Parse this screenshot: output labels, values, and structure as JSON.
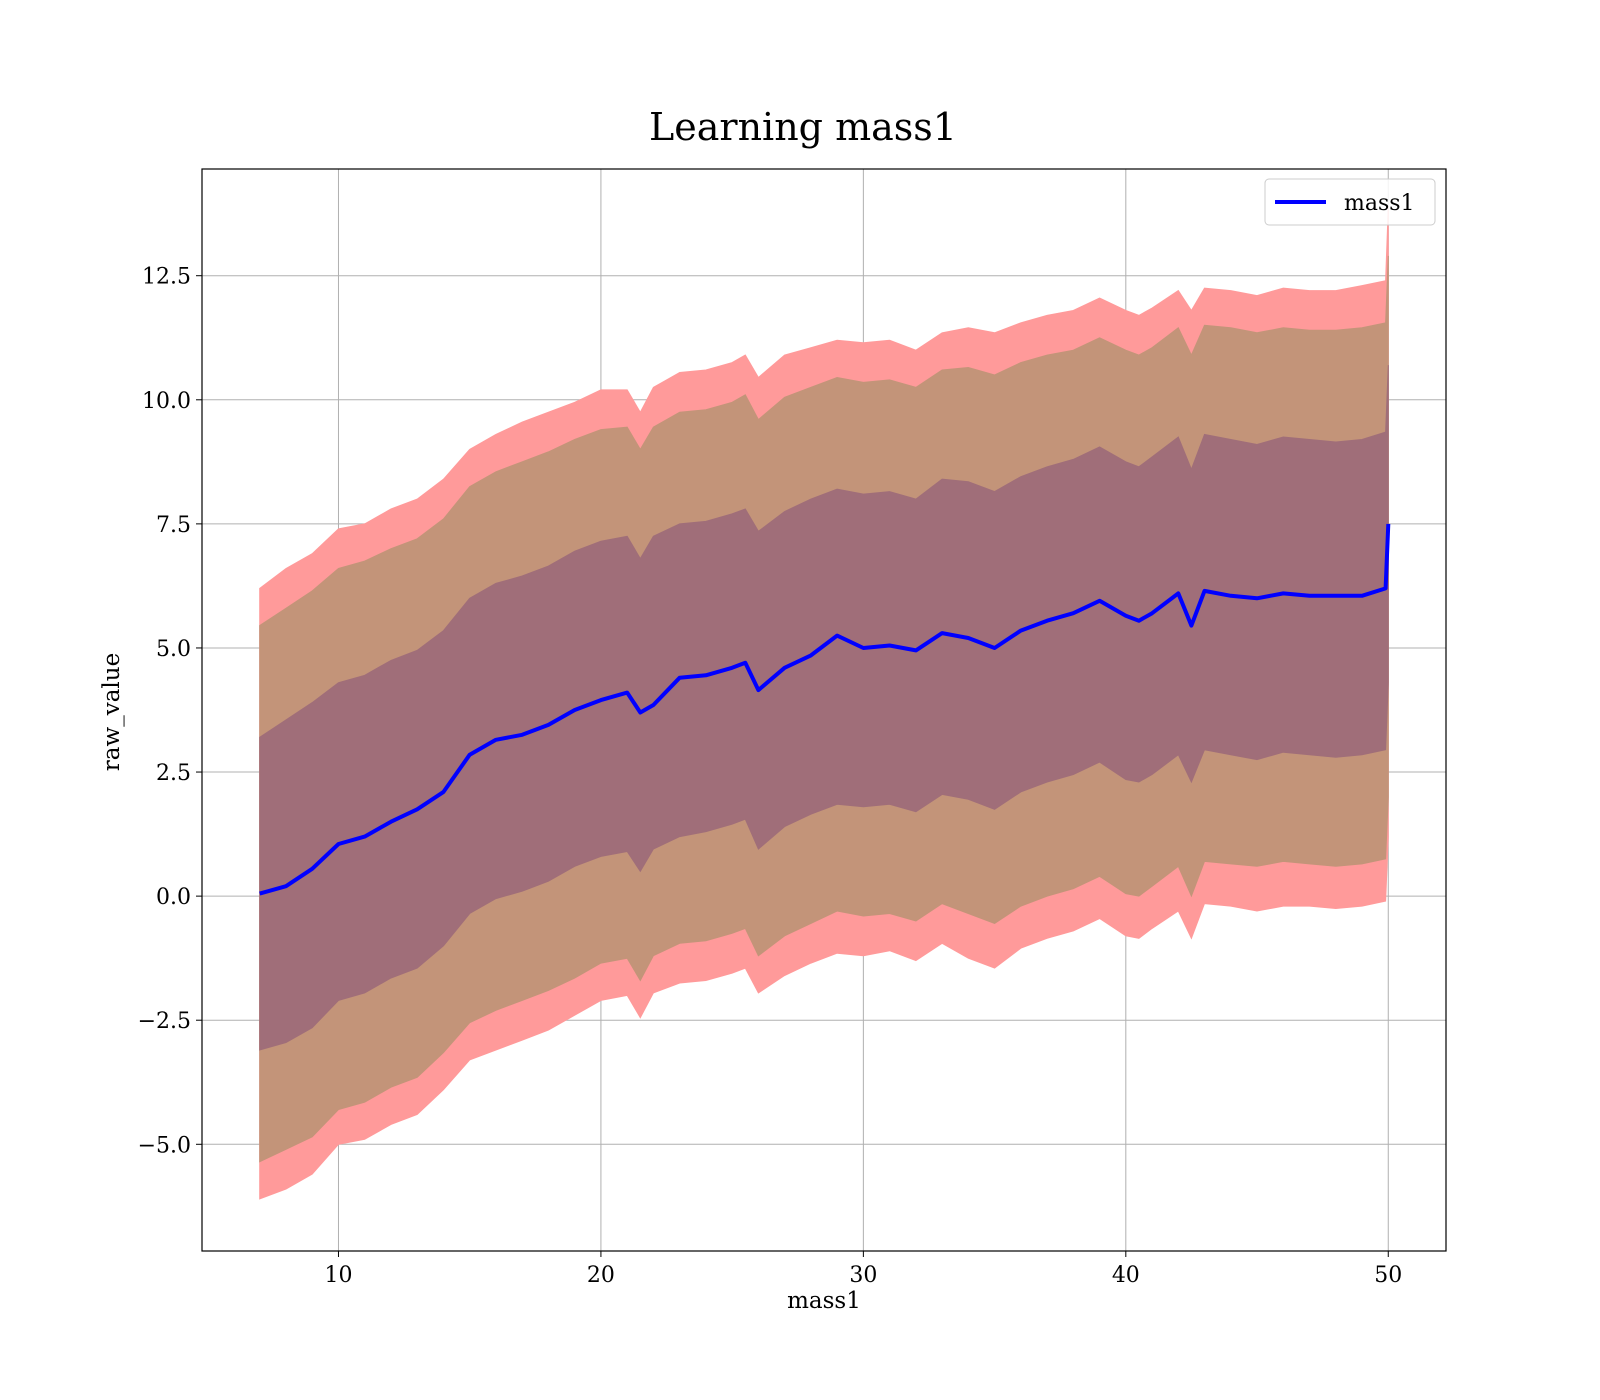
{
  "chart_data": {
    "type": "line",
    "title": "Learning mass1",
    "xlabel": "mass1",
    "ylabel": "raw_value",
    "xlim": [
      4.8,
      52.2
    ],
    "ylim": [
      -7.15,
      14.65
    ],
    "xticks": [
      10,
      20,
      30,
      40,
      50
    ],
    "xtick_labels": [
      "10",
      "20",
      "30",
      "40",
      "50"
    ],
    "yticks": [
      -5.0,
      -2.5,
      0.0,
      2.5,
      5.0,
      7.5,
      10.0,
      12.5
    ],
    "ytick_labels": [
      "−5.0",
      "−2.5",
      "0.0",
      "2.5",
      "5.0",
      "7.5",
      "10.0",
      "12.5"
    ],
    "grid": true,
    "legend": {
      "position": "top-right",
      "entries": [
        "mass1"
      ]
    },
    "colors": {
      "line": "#0000ff",
      "band_outer": "#ff9a9a",
      "band_middle": "#c39479",
      "band_inner": "#a06e79"
    },
    "series": [
      {
        "name": "mass1",
        "x": [
          7,
          8,
          9,
          10,
          11,
          12,
          13,
          14,
          15,
          16,
          17,
          18,
          19,
          20,
          21,
          21.5,
          22,
          23,
          24,
          25,
          25.5,
          26,
          27,
          28,
          29,
          30,
          31,
          32,
          33,
          34,
          35,
          36,
          37,
          38,
          39,
          40,
          40.5,
          41,
          42,
          42.5,
          43,
          44,
          45,
          46,
          47,
          48,
          49,
          49.9,
          50
        ],
        "y": [
          0.05,
          0.2,
          0.55,
          1.05,
          1.2,
          1.5,
          1.75,
          2.1,
          2.85,
          3.15,
          3.25,
          3.45,
          3.75,
          3.95,
          4.1,
          3.7,
          3.85,
          4.4,
          4.45,
          4.6,
          4.7,
          4.15,
          4.6,
          4.85,
          5.25,
          5.0,
          5.05,
          4.95,
          5.3,
          5.2,
          5.0,
          5.35,
          5.55,
          5.7,
          5.95,
          5.65,
          5.55,
          5.7,
          6.1,
          5.45,
          6.15,
          6.05,
          6.0,
          6.1,
          6.05,
          6.05,
          6.05,
          6.2,
          7.5
        ]
      }
    ],
    "bands": [
      {
        "name": "outer",
        "upper": [
          6.2,
          6.6,
          6.9,
          7.4,
          7.5,
          7.8,
          8.0,
          8.4,
          9.0,
          9.3,
          9.55,
          9.75,
          9.95,
          10.2,
          10.2,
          9.75,
          10.25,
          10.55,
          10.6,
          10.75,
          10.9,
          10.45,
          10.9,
          11.05,
          11.2,
          11.15,
          11.2,
          11.0,
          11.35,
          11.45,
          11.35,
          11.55,
          11.7,
          11.8,
          12.05,
          11.8,
          11.7,
          11.85,
          12.2,
          11.8,
          12.25,
          12.2,
          12.1,
          12.25,
          12.2,
          12.2,
          12.3,
          12.4,
          13.9
        ],
        "lower": [
          -6.1,
          -5.9,
          -5.6,
          -5.0,
          -4.9,
          -4.6,
          -4.4,
          -3.9,
          -3.3,
          -3.1,
          -2.9,
          -2.7,
          -2.4,
          -2.1,
          -2.0,
          -2.45,
          -1.95,
          -1.75,
          -1.7,
          -1.55,
          -1.45,
          -1.95,
          -1.6,
          -1.35,
          -1.15,
          -1.2,
          -1.1,
          -1.3,
          -0.95,
          -1.25,
          -1.45,
          -1.05,
          -0.85,
          -0.7,
          -0.45,
          -0.8,
          -0.85,
          -0.65,
          -0.3,
          -0.85,
          -0.15,
          -0.2,
          -0.3,
          -0.2,
          -0.2,
          -0.25,
          -0.2,
          -0.1,
          1.2
        ]
      },
      {
        "name": "middle",
        "upper": [
          5.45,
          5.8,
          6.15,
          6.6,
          6.75,
          7.0,
          7.2,
          7.6,
          8.25,
          8.55,
          8.75,
          8.95,
          9.2,
          9.4,
          9.45,
          9.0,
          9.45,
          9.75,
          9.8,
          9.95,
          10.1,
          9.6,
          10.05,
          10.25,
          10.45,
          10.35,
          10.4,
          10.25,
          10.6,
          10.65,
          10.5,
          10.75,
          10.9,
          11.0,
          11.25,
          11.0,
          10.9,
          11.05,
          11.45,
          10.9,
          11.5,
          11.45,
          11.35,
          11.45,
          11.4,
          11.4,
          11.45,
          11.55,
          12.9
        ],
        "lower": [
          -5.35,
          -5.1,
          -4.85,
          -4.3,
          -4.15,
          -3.85,
          -3.65,
          -3.15,
          -2.55,
          -2.3,
          -2.1,
          -1.9,
          -1.65,
          -1.35,
          -1.25,
          -1.7,
          -1.2,
          -0.95,
          -0.9,
          -0.75,
          -0.65,
          -1.2,
          -0.8,
          -0.55,
          -0.3,
          -0.4,
          -0.35,
          -0.5,
          -0.15,
          -0.35,
          -0.55,
          -0.2,
          0.0,
          0.15,
          0.4,
          0.05,
          0.0,
          0.2,
          0.6,
          0.0,
          0.7,
          0.65,
          0.6,
          0.7,
          0.65,
          0.6,
          0.65,
          0.75,
          2.0
        ]
      },
      {
        "name": "inner",
        "upper": [
          3.2,
          3.55,
          3.9,
          4.3,
          4.45,
          4.75,
          4.95,
          5.35,
          6.0,
          6.3,
          6.45,
          6.65,
          6.95,
          7.15,
          7.25,
          6.8,
          7.25,
          7.5,
          7.55,
          7.7,
          7.8,
          7.35,
          7.75,
          8.0,
          8.2,
          8.1,
          8.15,
          8.0,
          8.4,
          8.35,
          8.15,
          8.45,
          8.65,
          8.8,
          9.05,
          8.75,
          8.65,
          8.85,
          9.25,
          8.6,
          9.3,
          9.2,
          9.1,
          9.25,
          9.2,
          9.15,
          9.2,
          9.35,
          10.7
        ],
        "lower": [
          -3.1,
          -2.95,
          -2.65,
          -2.1,
          -1.95,
          -1.65,
          -1.45,
          -1.0,
          -0.35,
          -0.05,
          0.1,
          0.3,
          0.6,
          0.8,
          0.9,
          0.5,
          0.95,
          1.2,
          1.3,
          1.45,
          1.55,
          0.95,
          1.4,
          1.65,
          1.85,
          1.8,
          1.85,
          1.7,
          2.05,
          1.95,
          1.75,
          2.1,
          2.3,
          2.45,
          2.7,
          2.35,
          2.3,
          2.45,
          2.85,
          2.3,
          2.95,
          2.85,
          2.75,
          2.9,
          2.85,
          2.8,
          2.85,
          2.95,
          4.3
        ]
      }
    ]
  }
}
